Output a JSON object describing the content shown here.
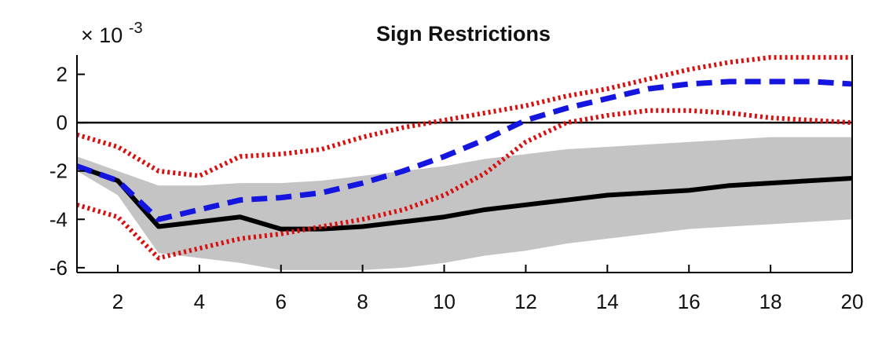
{
  "chart_data": {
    "type": "line",
    "title": "Sign Restrictions",
    "exponent_label": "× 10",
    "exponent_power": "-3",
    "xlabel": "",
    "ylabel": "",
    "xlim": [
      1,
      20
    ],
    "ylim": [
      -6.2,
      2.8
    ],
    "xticks": [
      2,
      4,
      6,
      8,
      10,
      12,
      14,
      16,
      18,
      20
    ],
    "yticks": [
      2,
      0,
      -2,
      -4,
      -6
    ],
    "grid": false,
    "legend": "none",
    "zero_line": 0,
    "x": [
      1,
      2,
      3,
      4,
      5,
      6,
      7,
      8,
      9,
      10,
      11,
      12,
      13,
      14,
      15,
      16,
      17,
      18,
      19,
      20
    ],
    "band": {
      "color": "#c4c4c4",
      "upper": [
        -1.4,
        -2.0,
        -2.6,
        -2.6,
        -2.5,
        -2.5,
        -2.4,
        -2.2,
        -2.0,
        -1.8,
        -1.5,
        -1.3,
        -1.1,
        -1.0,
        -0.9,
        -0.8,
        -0.7,
        -0.6,
        -0.6,
        -0.6
      ],
      "lower": [
        -2.0,
        -3.0,
        -5.4,
        -5.6,
        -5.8,
        -6.1,
        -6.1,
        -6.1,
        -6.0,
        -5.8,
        -5.5,
        -5.3,
        -5.0,
        -4.8,
        -4.6,
        -4.4,
        -4.3,
        -4.2,
        -4.1,
        -4.0
      ]
    },
    "series": [
      {
        "line_style": "solid",
        "color": "#000000",
        "values": [
          -1.8,
          -2.4,
          -4.3,
          -4.1,
          -3.9,
          -4.4,
          -4.4,
          -4.3,
          -4.1,
          -3.9,
          -3.6,
          -3.4,
          -3.2,
          -3.0,
          -2.9,
          -2.8,
          -2.6,
          -2.5,
          -2.4,
          -2.3
        ]
      },
      {
        "line_style": "dashed",
        "color": "#1515e0",
        "values": [
          -1.8,
          -2.4,
          -4.0,
          -3.6,
          -3.2,
          -3.1,
          -2.9,
          -2.5,
          -2.0,
          -1.4,
          -0.7,
          0.1,
          0.6,
          1.0,
          1.4,
          1.6,
          1.7,
          1.7,
          1.7,
          1.6
        ]
      },
      {
        "line_style": "dotted",
        "color": "#d81010",
        "values": [
          -0.5,
          -1.0,
          -2.0,
          -2.2,
          -1.4,
          -1.3,
          -1.1,
          -0.6,
          -0.2,
          0.1,
          0.4,
          0.7,
          1.1,
          1.4,
          1.8,
          2.2,
          2.5,
          2.7,
          2.7,
          2.7
        ]
      },
      {
        "line_style": "dotted",
        "color": "#d81010",
        "values": [
          -3.4,
          -3.9,
          -5.6,
          -5.2,
          -4.8,
          -4.6,
          -4.3,
          -4.0,
          -3.6,
          -3.0,
          -2.1,
          -0.8,
          0.0,
          0.3,
          0.5,
          0.5,
          0.4,
          0.2,
          0.1,
          0.0
        ]
      }
    ]
  }
}
